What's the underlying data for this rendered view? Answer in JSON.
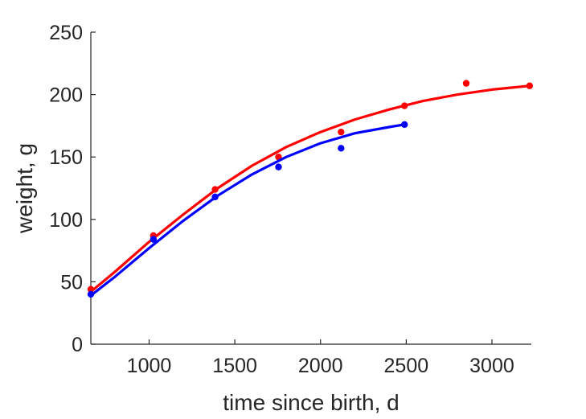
{
  "chart_data": {
    "type": "scatter",
    "title": "",
    "xlabel": "time since birth, d",
    "ylabel": "weight, g",
    "xlim": [
      660,
      3230
    ],
    "ylim": [
      0,
      250
    ],
    "x_ticks": [
      1000,
      1500,
      2000,
      2500,
      3000
    ],
    "y_ticks": [
      0,
      50,
      100,
      150,
      200,
      250
    ],
    "grid": false,
    "series": [
      {
        "color": "#ff0000",
        "points": [
          {
            "x": 660,
            "y": 44
          },
          {
            "x": 1025,
            "y": 87
          },
          {
            "x": 1385,
            "y": 124
          },
          {
            "x": 1755,
            "y": 150
          },
          {
            "x": 2120,
            "y": 170
          },
          {
            "x": 2490,
            "y": 191
          },
          {
            "x": 2850,
            "y": 209
          },
          {
            "x": 3220,
            "y": 207
          }
        ],
        "fit": [
          {
            "x": 660,
            "y": 42
          },
          {
            "x": 800,
            "y": 58
          },
          {
            "x": 1000,
            "y": 82
          },
          {
            "x": 1200,
            "y": 104
          },
          {
            "x": 1400,
            "y": 125
          },
          {
            "x": 1600,
            "y": 143
          },
          {
            "x": 1800,
            "y": 158
          },
          {
            "x": 2000,
            "y": 170
          },
          {
            "x": 2200,
            "y": 180
          },
          {
            "x": 2400,
            "y": 188
          },
          {
            "x": 2600,
            "y": 195
          },
          {
            "x": 2800,
            "y": 200
          },
          {
            "x": 3000,
            "y": 204
          },
          {
            "x": 3220,
            "y": 207
          }
        ]
      },
      {
        "color": "#0000ff",
        "points": [
          {
            "x": 660,
            "y": 40
          },
          {
            "x": 1025,
            "y": 84
          },
          {
            "x": 1385,
            "y": 118
          },
          {
            "x": 1755,
            "y": 142
          },
          {
            "x": 2120,
            "y": 157
          },
          {
            "x": 2490,
            "y": 176
          }
        ],
        "fit": [
          {
            "x": 660,
            "y": 39
          },
          {
            "x": 800,
            "y": 54
          },
          {
            "x": 1000,
            "y": 77
          },
          {
            "x": 1200,
            "y": 99
          },
          {
            "x": 1400,
            "y": 119
          },
          {
            "x": 1600,
            "y": 136
          },
          {
            "x": 1800,
            "y": 150
          },
          {
            "x": 2000,
            "y": 161
          },
          {
            "x": 2200,
            "y": 169
          },
          {
            "x": 2400,
            "y": 174
          },
          {
            "x": 2490,
            "y": 176
          }
        ]
      }
    ]
  }
}
